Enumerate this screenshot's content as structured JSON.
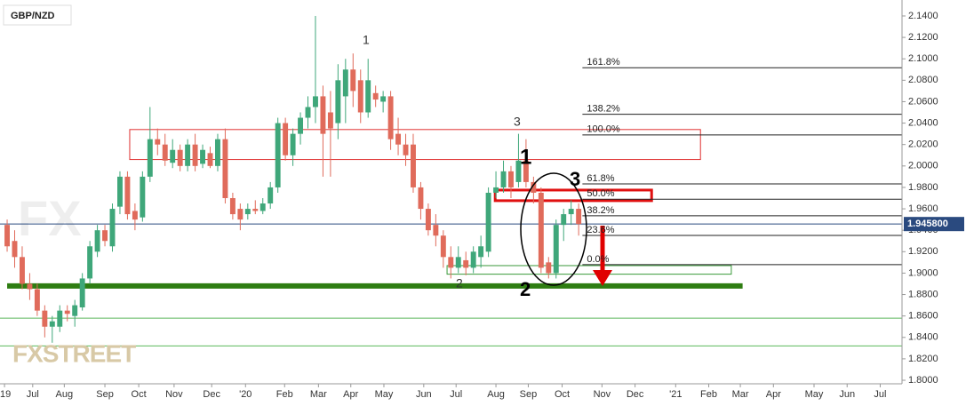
{
  "chart_data": {
    "type": "candlestick",
    "title": "GBP/NZD",
    "watermark": "FXSTREET",
    "up_color": "#3fa77a",
    "down_color": "#e06b5b",
    "categories": [
      null,
      null,
      null,
      null,
      null,
      null,
      null,
      null,
      null,
      null,
      null,
      null,
      null,
      null,
      null,
      null,
      null,
      null,
      null,
      null,
      null,
      null,
      null,
      null,
      null,
      null,
      null,
      null,
      null,
      null,
      null,
      null,
      null,
      null,
      null,
      null,
      null,
      null,
      null,
      null,
      null,
      null,
      null,
      null,
      null,
      null,
      null,
      null,
      null,
      null,
      null,
      null,
      null,
      null,
      null,
      null,
      null,
      null,
      null,
      null,
      null,
      null,
      null,
      null,
      null,
      null,
      null,
      null,
      null,
      null,
      null,
      null,
      null,
      null,
      null,
      null,
      null
    ],
    "open": [
      1.945,
      1.93,
      1.915,
      1.89,
      1.885,
      1.865,
      1.85,
      1.85,
      1.865,
      1.86,
      1.868,
      1.895,
      1.92,
      1.94,
      1.925,
      1.962,
      1.99,
      1.958,
      1.952,
      1.99,
      2.025,
      2.02,
      2.003,
      2.015,
      2.0,
      2.02,
      2.002,
      2.012,
      2.0,
      2.025,
      1.97,
      1.96,
      1.955,
      1.96,
      1.958,
      1.965,
      1.98,
      2.04,
      2.01,
      2.03,
      2.045,
      2.055,
      2.065,
      2.05,
      2.04,
      2.065,
      2.09,
      2.08,
      2.05,
      2.068,
      2.06,
      2.065,
      2.03,
      2.02,
      2.02,
      1.98,
      1.96,
      1.945,
      1.935,
      1.915,
      1.905,
      1.912,
      1.905,
      1.915,
      1.92,
      1.975,
      1.98,
      1.995,
      1.985,
      2.005,
      1.985,
      1.975,
      1.91,
      1.9,
      1.945,
      1.955,
      1.96
    ],
    "high": [
      1.95,
      1.94,
      1.925,
      1.9,
      1.89,
      1.87,
      1.86,
      1.87,
      1.87,
      1.875,
      1.9,
      1.93,
      1.945,
      1.945,
      1.965,
      1.995,
      1.995,
      1.965,
      1.995,
      2.055,
      2.035,
      2.03,
      2.025,
      2.02,
      2.025,
      2.03,
      2.02,
      2.018,
      2.03,
      2.035,
      1.975,
      1.965,
      1.965,
      1.968,
      1.97,
      1.985,
      2.045,
      2.045,
      2.035,
      2.05,
      2.065,
      2.14,
      2.075,
      2.07,
      2.095,
      2.1,
      2.105,
      2.09,
      2.1,
      2.075,
      2.07,
      2.07,
      2.045,
      2.03,
      2.03,
      1.985,
      1.965,
      1.955,
      1.94,
      1.925,
      1.925,
      1.92,
      1.925,
      1.935,
      1.98,
      1.995,
      2.005,
      2.0,
      2.03,
      2.025,
      1.99,
      1.98,
      1.915,
      1.95,
      1.96,
      1.968,
      1.965
    ],
    "low": [
      1.92,
      1.905,
      1.885,
      1.875,
      1.86,
      1.84,
      1.835,
      1.845,
      1.855,
      1.85,
      1.865,
      1.89,
      1.915,
      1.925,
      1.92,
      1.955,
      1.95,
      1.94,
      1.948,
      1.985,
      2.01,
      2.0,
      1.998,
      1.995,
      1.995,
      1.995,
      1.998,
      1.998,
      1.995,
      1.965,
      1.95,
      1.94,
      1.95,
      1.955,
      1.955,
      1.96,
      1.975,
      2.005,
      2.0,
      2.02,
      2.035,
      2.04,
      1.99,
      1.99,
      2.025,
      2.04,
      2.055,
      2.04,
      2.045,
      2.055,
      2.05,
      2.015,
      2.01,
      2.0,
      1.975,
      1.95,
      1.935,
      1.925,
      1.905,
      1.895,
      1.9,
      1.898,
      1.9,
      1.905,
      1.915,
      1.97,
      1.975,
      1.97,
      1.98,
      1.98,
      1.965,
      1.9,
      1.895,
      1.895,
      1.93,
      1.945,
      1.935
    ],
    "close": [
      1.925,
      1.915,
      1.89,
      1.885,
      1.865,
      1.85,
      1.855,
      1.865,
      1.862,
      1.87,
      1.895,
      1.925,
      1.94,
      1.93,
      1.96,
      1.99,
      1.955,
      1.95,
      1.99,
      2.025,
      2.02,
      2.005,
      2.015,
      2.0,
      2.02,
      2.0,
      2.015,
      2.0,
      2.025,
      1.97,
      1.955,
      1.95,
      1.96,
      1.958,
      1.965,
      1.98,
      2.04,
      2.01,
      2.03,
      2.045,
      2.055,
      2.065,
      2.03,
      2.035,
      2.08,
      2.09,
      2.07,
      2.05,
      2.08,
      2.062,
      2.065,
      2.025,
      2.02,
      2.01,
      1.98,
      1.96,
      1.94,
      1.935,
      1.915,
      1.905,
      1.915,
      1.905,
      1.92,
      1.925,
      1.975,
      1.98,
      1.995,
      1.98,
      2.005,
      1.985,
      1.975,
      1.905,
      1.9,
      1.945,
      1.955,
      1.96,
      1.9458
    ],
    "xlim": [
      -0.95,
      119.0
    ],
    "xticks": [
      {
        "value": -0.35,
        "label": "'19"
      },
      {
        "value": 3.4,
        "label": "Jul"
      },
      {
        "value": 7.6,
        "label": "Aug"
      },
      {
        "value": 13.0,
        "label": "Sep"
      },
      {
        "value": 17.5,
        "label": "Oct"
      },
      {
        "value": 22.2,
        "label": "Nov"
      },
      {
        "value": 27.2,
        "label": "Dec"
      },
      {
        "value": 31.7,
        "label": "'20"
      },
      {
        "value": 36.9,
        "label": "Feb"
      },
      {
        "value": 41.4,
        "label": "Mar"
      },
      {
        "value": 45.7,
        "label": "Apr"
      },
      {
        "value": 50.1,
        "label": "May"
      },
      {
        "value": 55.4,
        "label": "Jun"
      },
      {
        "value": 59.7,
        "label": "Jul"
      },
      {
        "value": 65.0,
        "label": "Aug"
      },
      {
        "value": 69.3,
        "label": "Sep"
      },
      {
        "value": 73.8,
        "label": "Oct"
      },
      {
        "value": 79.1,
        "label": "Nov"
      },
      {
        "value": 83.5,
        "label": "Dec"
      },
      {
        "value": 88.9,
        "label": "'21"
      },
      {
        "value": 93.3,
        "label": "Feb"
      },
      {
        "value": 97.5,
        "label": "Mar"
      },
      {
        "value": 101.9,
        "label": "Apr"
      },
      {
        "value": 107.3,
        "label": "May"
      },
      {
        "value": 111.7,
        "label": "Jun"
      },
      {
        "value": 116.1,
        "label": "Jul"
      }
    ],
    "ylim": [
      1.7967,
      2.1549
    ],
    "yticks": [
      {
        "value": 2.14,
        "label": "2.1400"
      },
      {
        "value": 2.12,
        "label": "2.1200"
      },
      {
        "value": 2.1,
        "label": "2.1000"
      },
      {
        "value": 2.08,
        "label": "2.0800"
      },
      {
        "value": 2.06,
        "label": "2.0600"
      },
      {
        "value": 2.04,
        "label": "2.0400"
      },
      {
        "value": 2.02,
        "label": "2.0200"
      },
      {
        "value": 2.0,
        "label": "2.0000"
      },
      {
        "value": 1.98,
        "label": "1.9800"
      },
      {
        "value": 1.96,
        "label": "1.9600"
      },
      {
        "value": 1.94,
        "label": "1.9400"
      },
      {
        "value": 1.92,
        "label": "1.9200"
      },
      {
        "value": 1.9,
        "label": "1.9000"
      },
      {
        "value": 1.88,
        "label": "1.8800"
      },
      {
        "value": 1.86,
        "label": "1.8600"
      },
      {
        "value": 1.84,
        "label": "1.8400"
      },
      {
        "value": 1.82,
        "label": "1.8200"
      },
      {
        "value": 1.8,
        "label": "1.8000"
      }
    ],
    "grid": false,
    "last_price": {
      "value": 1.9458,
      "label": "1.945800",
      "color": "#2a4a7f"
    },
    "fib": {
      "start": 76.5,
      "levels": [
        {
          "label": "161.8%",
          "price": 2.0917
        },
        {
          "label": "138.2%",
          "price": 2.0483
        },
        {
          "label": "100.0%",
          "price": 2.029
        },
        {
          "label": "61.8%",
          "price": 1.9833
        },
        {
          "label": "50.0%",
          "price": 1.969
        },
        {
          "label": "38.2%",
          "price": 1.9535
        },
        {
          "label": "23.6%",
          "price": 1.9352
        },
        {
          "label": "0.0%",
          "price": 1.9079
        }
      ]
    },
    "zones": [
      {
        "x0": 16.3,
        "x1": 92.2,
        "y0": 2.006,
        "y1": 2.034,
        "color": "#e03030",
        "width": 1
      },
      {
        "x0": 64.9,
        "x1": 85.7,
        "y0": 1.9676,
        "y1": 1.9775,
        "color": "#e01010",
        "width": 3
      },
      {
        "x0": 58.5,
        "x1": 96.3,
        "y0": 1.899,
        "y1": 1.907,
        "color": "#3a9a3a",
        "width": 1
      }
    ],
    "levels": [
      {
        "price": 1.888,
        "x0": 0,
        "x1": 97.8,
        "color": "#2e7d12",
        "width": 6
      },
      {
        "price": 1.858,
        "x0": -0.95,
        "x1": 119.0,
        "color": "#5cb85c",
        "width": 1
      },
      {
        "price": 1.832,
        "x0": -0.95,
        "x1": 119.0,
        "color": "#5cb85c",
        "width": 1
      }
    ],
    "annotations": {
      "wave1": "1",
      "wave3": "3",
      "wave2": "2",
      "big1": "1",
      "big3": "3",
      "big2": "2"
    }
  }
}
